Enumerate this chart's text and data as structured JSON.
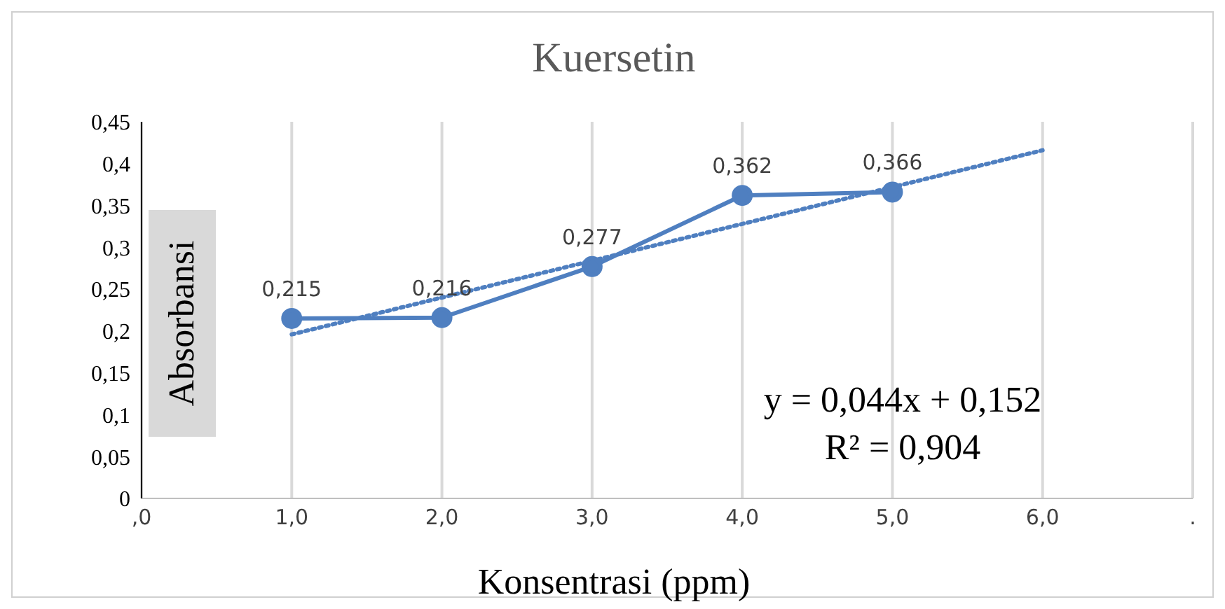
{
  "chart_data": {
    "type": "line",
    "title": "Kuersetin",
    "xlabel": "Konsentrasi (ppm)",
    "ylabel": "Absorbansi",
    "x": [
      1,
      2,
      3,
      4,
      5
    ],
    "series": [
      {
        "color": "#4f7fc0",
        "values": [
          0.215,
          0.216,
          0.277,
          0.362,
          0.366
        ],
        "value_labels": [
          "0,215",
          "0,216",
          "0,277",
          "0,362",
          "0,366"
        ],
        "marker": "circle",
        "line_style": "solid"
      },
      {
        "type": "line",
        "x": [
          1,
          6
        ],
        "color": "#4f7fc0",
        "values": [
          0.196,
          0.416
        ],
        "marker": "none",
        "line_style": "dotted"
      }
    ],
    "xlim": [
      0,
      7
    ],
    "xticks": [
      {
        "value": 0,
        "label": ",0"
      },
      {
        "value": 1,
        "label": "1,0"
      },
      {
        "value": 2,
        "label": "2,0"
      },
      {
        "value": 3,
        "label": "3,0"
      },
      {
        "value": 4,
        "label": "4,0"
      },
      {
        "value": 5,
        "label": "5,0"
      },
      {
        "value": 6,
        "label": "6,0"
      },
      {
        "value": 7,
        "label": "."
      }
    ],
    "ylim": [
      0,
      0.45
    ],
    "yticks": [
      0,
      {
        "value": 0.05,
        "label": "0,05"
      },
      {
        "value": 0.1,
        "label": "0,1"
      },
      {
        "value": 0.15,
        "label": "0,15"
      },
      {
        "value": 0.2,
        "label": "0,2"
      },
      {
        "value": 0.25,
        "label": "0,25"
      },
      {
        "value": 0.3,
        "label": "0,3"
      },
      {
        "value": 0.35,
        "label": "0,35"
      },
      {
        "value": 0.4,
        "label": "0,4"
      },
      {
        "value": 0.45,
        "label": "0,45"
      }
    ],
    "grid": "x",
    "annotations": [
      "y = 0,044x + 0,152",
      "R² = 0,904"
    ]
  }
}
